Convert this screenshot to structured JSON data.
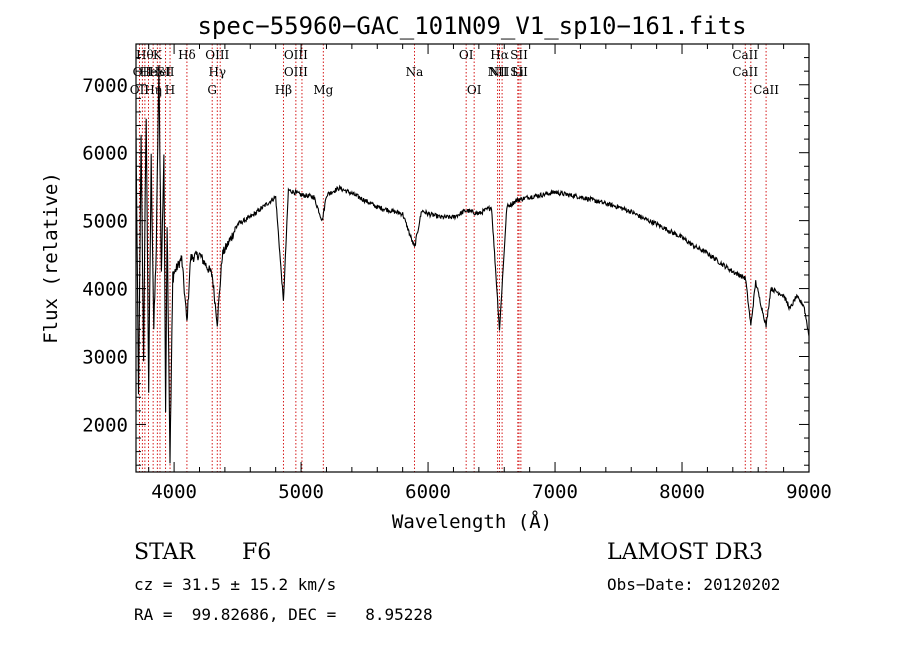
{
  "chart_data": {
    "type": "line",
    "title": "spec−55960−GAC_101N09_V1_sp10−161.fits",
    "xlabel": "Wavelength (Å)",
    "ylabel": "Flux (relative)",
    "xlim": [
      3700,
      9000
    ],
    "ylim": [
      1300,
      7600
    ],
    "xticks": [
      4000,
      5000,
      6000,
      7000,
      8000,
      9000
    ],
    "yticks": [
      2000,
      3000,
      4000,
      5000,
      6000,
      7000
    ],
    "spectrum_knots": [
      [
        3700,
        6300
      ],
      [
        3720,
        2400
      ],
      [
        3740,
        6200
      ],
      [
        3760,
        3000
      ],
      [
        3780,
        6600
      ],
      [
        3800,
        2500
      ],
      [
        3820,
        5900
      ],
      [
        3840,
        3400
      ],
      [
        3860,
        4600
      ],
      [
        3880,
        7200
      ],
      [
        3900,
        4200
      ],
      [
        3920,
        6000
      ],
      [
        3933,
        2200
      ],
      [
        3945,
        5000
      ],
      [
        3968,
        1500
      ],
      [
        3990,
        4200
      ],
      [
        4020,
        4300
      ],
      [
        4060,
        4450
      ],
      [
        4101,
        3500
      ],
      [
        4130,
        4450
      ],
      [
        4200,
        4500
      ],
      [
        4250,
        4350
      ],
      [
        4300,
        4200
      ],
      [
        4340,
        3500
      ],
      [
        4380,
        4500
      ],
      [
        4450,
        4750
      ],
      [
        4500,
        4950
      ],
      [
        4600,
        5050
      ],
      [
        4700,
        5200
      ],
      [
        4800,
        5350
      ],
      [
        4861,
        3800
      ],
      [
        4900,
        5450
      ],
      [
        5000,
        5380
      ],
      [
        5100,
        5350
      ],
      [
        5167,
        5000
      ],
      [
        5200,
        5380
      ],
      [
        5300,
        5480
      ],
      [
        5400,
        5400
      ],
      [
        5500,
        5300
      ],
      [
        5600,
        5200
      ],
      [
        5700,
        5150
      ],
      [
        5800,
        5100
      ],
      [
        5893,
        4600
      ],
      [
        5950,
        5150
      ],
      [
        6000,
        5100
      ],
      [
        6100,
        5050
      ],
      [
        6200,
        5050
      ],
      [
        6300,
        5150
      ],
      [
        6400,
        5100
      ],
      [
        6500,
        5200
      ],
      [
        6563,
        3400
      ],
      [
        6620,
        5200
      ],
      [
        6700,
        5300
      ],
      [
        6800,
        5350
      ],
      [
        6900,
        5380
      ],
      [
        7000,
        5420
      ],
      [
        7100,
        5380
      ],
      [
        7200,
        5350
      ],
      [
        7300,
        5300
      ],
      [
        7400,
        5250
      ],
      [
        7500,
        5200
      ],
      [
        7600,
        5130
      ],
      [
        7700,
        5030
      ],
      [
        7800,
        4950
      ],
      [
        7900,
        4850
      ],
      [
        8000,
        4750
      ],
      [
        8100,
        4620
      ],
      [
        8200,
        4520
      ],
      [
        8300,
        4380
      ],
      [
        8400,
        4250
      ],
      [
        8500,
        4150
      ],
      [
        8542,
        3450
      ],
      [
        8580,
        4100
      ],
      [
        8662,
        3450
      ],
      [
        8700,
        4000
      ],
      [
        8800,
        3900
      ],
      [
        8850,
        3700
      ],
      [
        8900,
        3880
      ],
      [
        8960,
        3750
      ],
      [
        9000,
        3300
      ]
    ],
    "line_markers": [
      {
        "wl": 3727,
        "labels": [
          "OII"
        ],
        "row": 3
      },
      {
        "wl": 3750,
        "labels": [
          "OII"
        ],
        "row": 2
      },
      {
        "wl": 3770,
        "labels": [
          "Hθ"
        ],
        "row": 1
      },
      {
        "wl": 3798,
        "labels": [
          "He"
        ],
        "row": 2
      },
      {
        "wl": 3835,
        "labels": [
          "Hη"
        ],
        "row": 3
      },
      {
        "wl": 3868,
        "labels": [
          "K"
        ],
        "row": 1
      },
      {
        "wl": 3889,
        "labels": [
          "HeI"
        ],
        "row": 2
      },
      {
        "wl": 3933,
        "labels": [
          "SII"
        ],
        "row": 2
      },
      {
        "wl": 3968,
        "labels": [
          "H"
        ],
        "row": 3
      },
      {
        "wl": 4101,
        "labels": [
          "Hδ"
        ],
        "row": 1
      },
      {
        "wl": 4300,
        "labels": [
          "G"
        ],
        "row": 3
      },
      {
        "wl": 4340,
        "labels": [
          "OIII",
          "Hγ"
        ],
        "row": 1
      },
      {
        "wl": 4363,
        "labels": [],
        "row": 1
      },
      {
        "wl": 4861,
        "labels": [
          "Hβ"
        ],
        "row": 3
      },
      {
        "wl": 4959,
        "labels": [
          "OIII",
          "OIII"
        ],
        "row": 1
      },
      {
        "wl": 5007,
        "labels": [],
        "row": 1
      },
      {
        "wl": 5175,
        "labels": [
          "Mg"
        ],
        "row": 3
      },
      {
        "wl": 5893,
        "labels": [
          "Na"
        ],
        "row": 2
      },
      {
        "wl": 6300,
        "labels": [
          "OI"
        ],
        "row": 1
      },
      {
        "wl": 6363,
        "labels": [
          "OI"
        ],
        "row": 3
      },
      {
        "wl": 6548,
        "labels": [
          "NII"
        ],
        "row": 2
      },
      {
        "wl": 6563,
        "labels": [
          "Hα",
          "NII"
        ],
        "row": 1
      },
      {
        "wl": 6583,
        "labels": [],
        "row": 1
      },
      {
        "wl": 6707,
        "labels": [
          "Li"
        ],
        "row": 2
      },
      {
        "wl": 6716,
        "labels": [
          "SII",
          "SII"
        ],
        "row": 1
      },
      {
        "wl": 6731,
        "labels": [],
        "row": 1
      },
      {
        "wl": 8498,
        "labels": [
          "CaII",
          "CaII"
        ],
        "row": 1
      },
      {
        "wl": 8542,
        "labels": [],
        "row": 1
      },
      {
        "wl": 8662,
        "labels": [
          "CaII"
        ],
        "row": 3
      }
    ],
    "line_color": "#d00000",
    "spectrum_color": "#000000"
  },
  "info": {
    "object_class": "STAR",
    "subclass": "F6",
    "survey": "LAMOST DR3",
    "cz": "cz = 31.5 ± 15.2 km/s",
    "obs_date": "Obs−Date: 20120202",
    "coords": "RA =  99.82686, DEC =   8.95228"
  }
}
